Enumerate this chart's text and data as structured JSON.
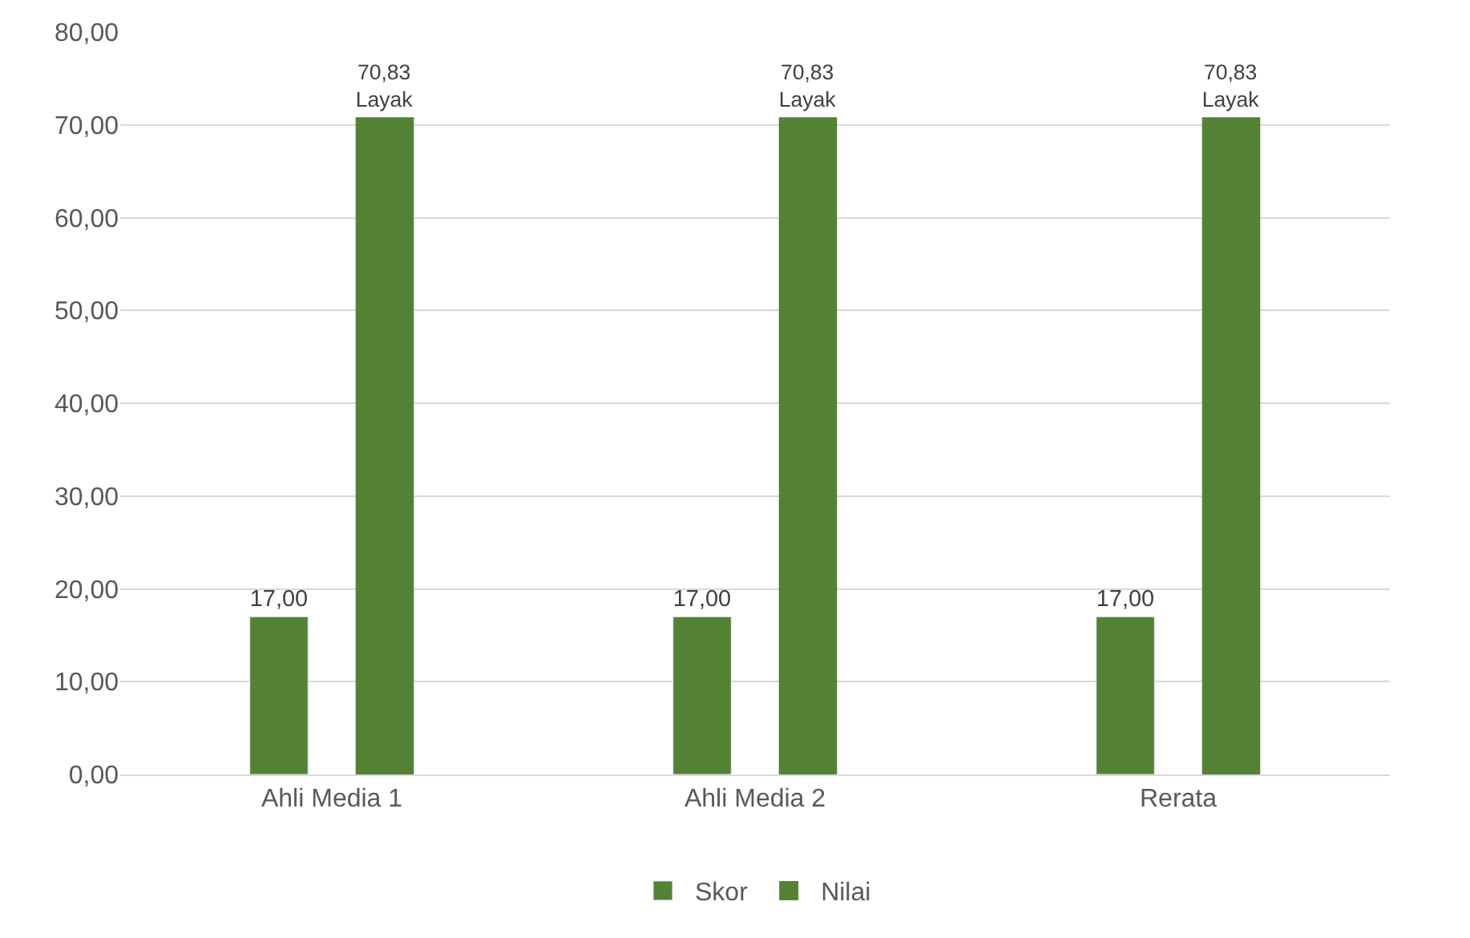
{
  "chart_data": {
    "type": "bar",
    "categories": [
      "Ahli Media 1",
      "Ahli Media 2",
      "Rerata"
    ],
    "series": [
      {
        "name": "Skor",
        "color": "#548235",
        "values": [
          17.0,
          17.0,
          17.0
        ],
        "value_labels": [
          "17,00",
          "17,00",
          "17,00"
        ]
      },
      {
        "name": "Nilai",
        "color": "#548235",
        "values": [
          70.83,
          70.83,
          70.83
        ],
        "value_labels": [
          "70,83\nLayak",
          "70,83\nLayak",
          "70,83\nLayak"
        ]
      }
    ],
    "ylim": [
      0,
      80
    ],
    "yticks": [
      {
        "value": 0,
        "label": "0,00"
      },
      {
        "value": 10,
        "label": "10,00"
      },
      {
        "value": 20,
        "label": "20,00"
      },
      {
        "value": 30,
        "label": "30,00"
      },
      {
        "value": 40,
        "label": "40,00"
      },
      {
        "value": 50,
        "label": "50,00"
      },
      {
        "value": 60,
        "label": "60,00"
      },
      {
        "value": 70,
        "label": "70,00"
      },
      {
        "value": 80,
        "label": "80,00"
      }
    ],
    "grid": "y",
    "legend": "bottom"
  }
}
